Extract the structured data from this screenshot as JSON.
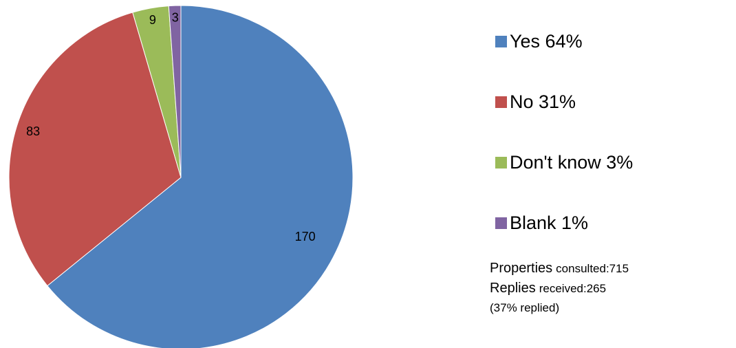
{
  "chart_data": {
    "type": "pie",
    "slices": [
      {
        "label": "Yes 64%",
        "value": 170,
        "value_label": "170",
        "color": "#4F81BD"
      },
      {
        "label": "No 31%",
        "value": 83,
        "value_label": "83",
        "color": "#C0504D"
      },
      {
        "label": "Don't know 3%",
        "value": 9,
        "value_label": "9",
        "color": "#9BBB59"
      },
      {
        "label": "Blank 1%",
        "value": 3,
        "value_label": "3",
        "color": "#8064A2"
      }
    ],
    "start_angle_deg": 0,
    "direction": "clockwise",
    "legend_position": "right"
  },
  "stats": {
    "consulted_word": "Properties",
    "consulted_rest": "consulted:715",
    "received_word": "Replies",
    "received_rest": "received:265",
    "replied_note": "(37% replied)"
  }
}
